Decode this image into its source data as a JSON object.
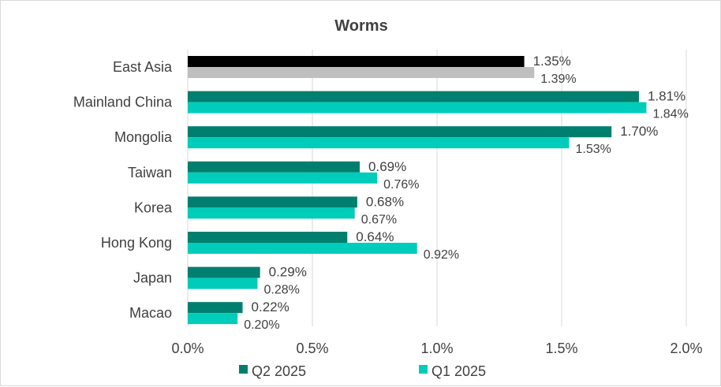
{
  "chart_data": {
    "type": "bar",
    "orientation": "horizontal",
    "title": "Worms",
    "categories": [
      "East Asia",
      "Mainland China",
      "Mongolia",
      "Taiwan",
      "Korea",
      "Hong Kong",
      "Japan",
      "Macao"
    ],
    "series": [
      {
        "name": "Q2 2025",
        "values": [
          1.35,
          1.81,
          1.7,
          0.69,
          0.68,
          0.64,
          0.29,
          0.22
        ],
        "labels": [
          "1.35%",
          "1.81%",
          "1.70%",
          "0.69%",
          "0.68%",
          "0.64%",
          "0.29%",
          "0.22%"
        ],
        "color": "#007f6e",
        "highlight_color": "#000000"
      },
      {
        "name": "Q1 2025",
        "values": [
          1.39,
          1.84,
          1.53,
          0.76,
          0.67,
          0.92,
          0.28,
          0.2
        ],
        "labels": [
          "1.39%",
          "1.84%",
          "1.53%",
          "0.76%",
          "0.67%",
          "0.92%",
          "0.28%",
          "0.20%"
        ],
        "color": "#00ccbb",
        "highlight_color": "#bfbfbf"
      }
    ],
    "highlight_category": "East Asia",
    "xlim": [
      0,
      2.0
    ],
    "xticks": [
      "0.0%",
      "0.5%",
      "1.0%",
      "1.5%",
      "2.0%"
    ],
    "xtick_values": [
      0,
      0.5,
      1.0,
      1.5,
      2.0
    ],
    "grid": true,
    "legend_position": "bottom",
    "xlabel": "",
    "ylabel": ""
  }
}
